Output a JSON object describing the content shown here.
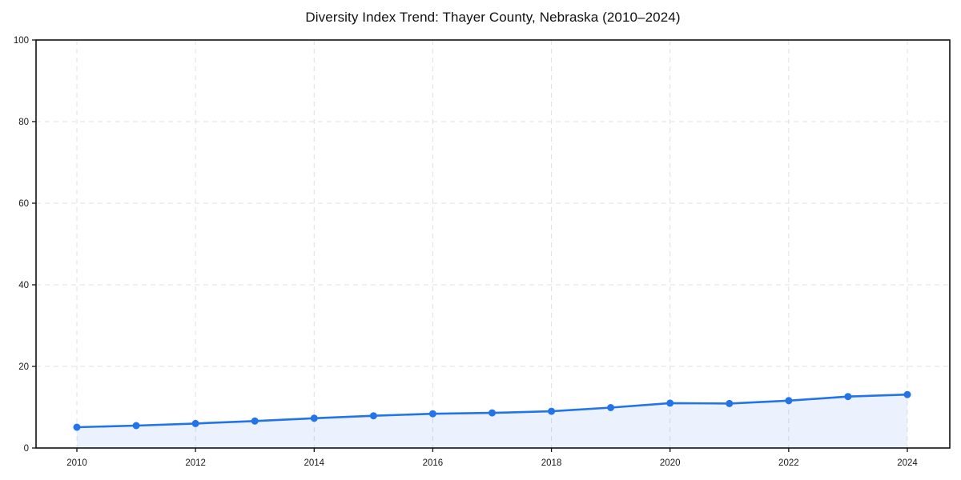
{
  "chart_data": {
    "type": "area",
    "title": "Diversity Index Trend: Thayer County, Nebraska (2010–2024)",
    "series_name": "Diversity Index",
    "x": [
      2010,
      2011,
      2012,
      2013,
      2014,
      2015,
      2016,
      2017,
      2018,
      2019,
      2020,
      2021,
      2022,
      2023,
      2024
    ],
    "values": [
      5.1,
      5.5,
      6.0,
      6.6,
      7.3,
      7.9,
      8.4,
      8.6,
      9.0,
      9.9,
      11.0,
      10.9,
      11.6,
      12.6,
      13.1
    ],
    "xlabel": "",
    "ylabel": "",
    "xlim": [
      2010,
      2024
    ],
    "ylim": [
      0,
      100
    ],
    "xticks": [
      2010,
      2012,
      2014,
      2016,
      2018,
      2020,
      2022,
      2024
    ],
    "yticks": [
      0,
      20,
      40,
      60,
      80,
      100
    ],
    "grid": true,
    "grid_style": "dashed",
    "legend_position": "none",
    "colors": {
      "line": "#2274e8",
      "fill": "#e9f1fc",
      "fill_opacity": 0.09,
      "grid": "#e0e0e0",
      "axis": "#111111",
      "tick_label": "#1a1a1a",
      "title": "#111111",
      "background": "#ffffff"
    }
  }
}
